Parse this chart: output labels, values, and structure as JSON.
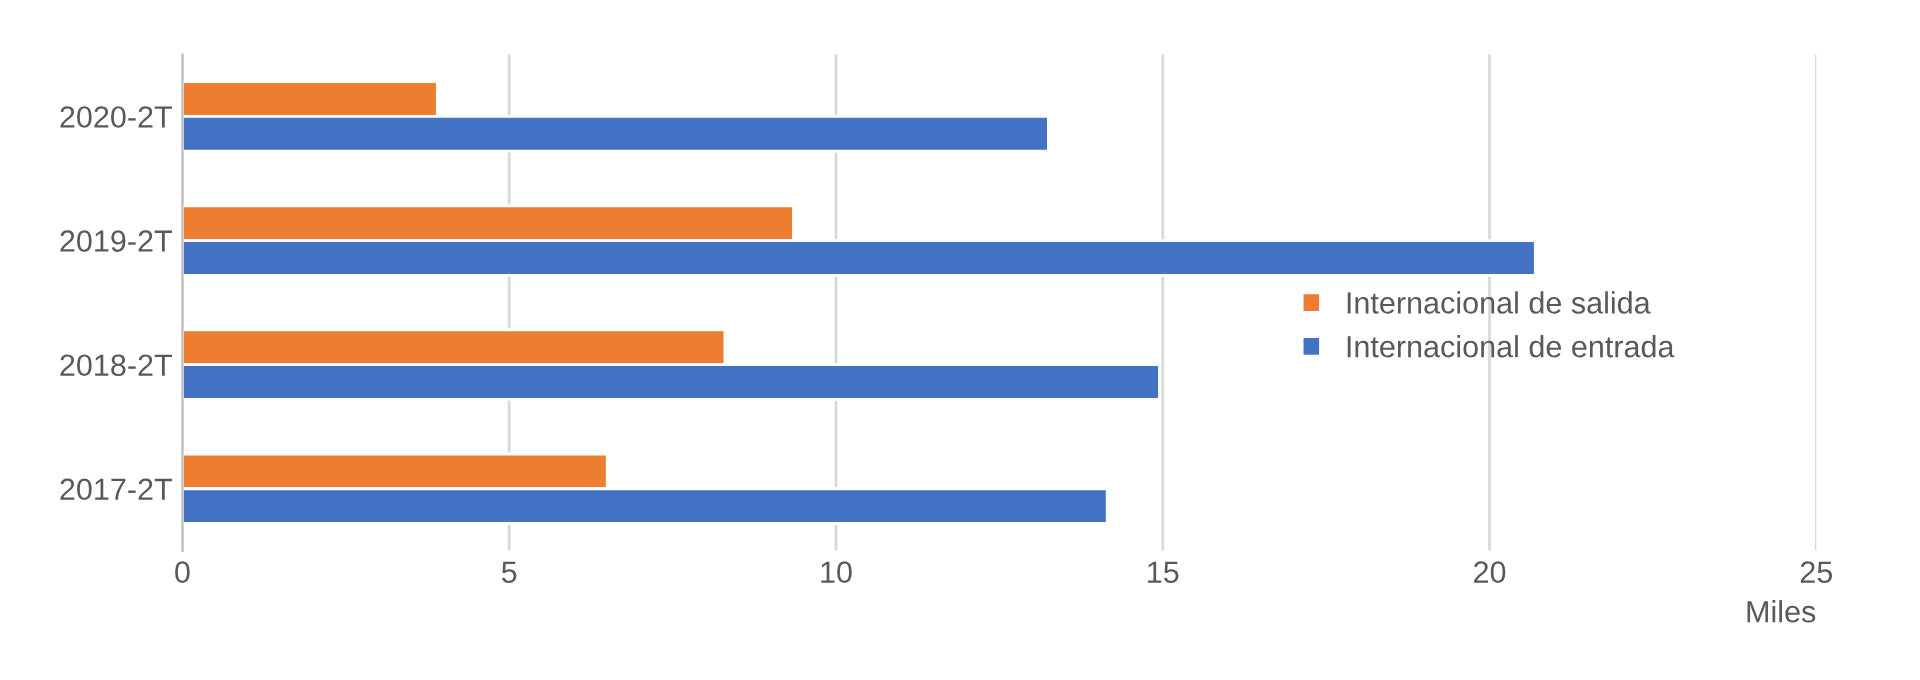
{
  "chart_data": {
    "type": "bar",
    "orientation": "horizontal",
    "categories": [
      "2020-2T",
      "2019-2T",
      "2018-2T",
      "2017-2T"
    ],
    "series": [
      {
        "name": "Internacional de salida",
        "color": "#ed7d31",
        "values": [
          3.9,
          9.35,
          8.3,
          6.5
        ]
      },
      {
        "name": "Internacional de entrada",
        "color": "#4472c4",
        "values": [
          13.25,
          20.7,
          14.95,
          14.15
        ]
      }
    ],
    "xlabel": "Miles",
    "xlim": [
      0,
      25
    ],
    "xticks": [
      0,
      5,
      10,
      15,
      20,
      25
    ],
    "grid": "x",
    "legend": "right"
  }
}
